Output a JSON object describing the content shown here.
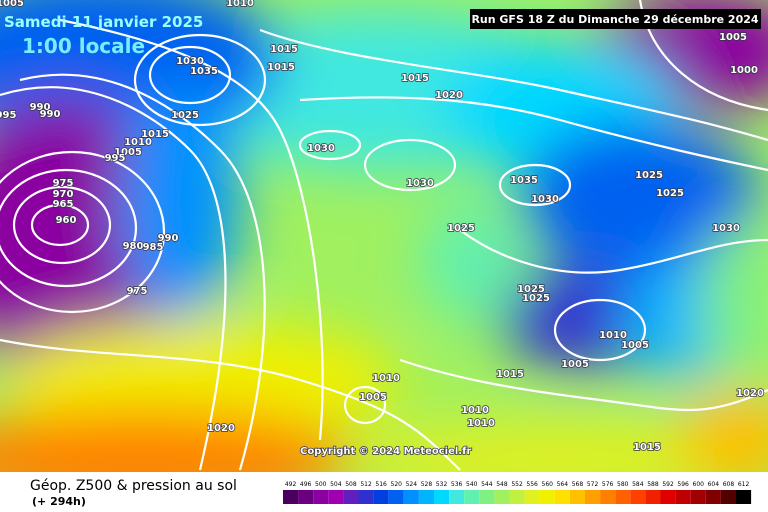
{
  "header": {
    "date": "Samedi 11 janvier 2025",
    "local_time": "1:00 locale",
    "run": "Run GFS 18 Z du Dimanche 29 décembre 2024"
  },
  "copyright": "Copyright © 2024 Meteociel.fr",
  "isobar_labels": [
    "1005",
    "1010",
    "1030",
    "1035",
    "1015",
    "1015",
    "1015",
    "1020",
    "990",
    "995",
    "990",
    "1025",
    "1015",
    "1010",
    "1005",
    "995",
    "1030",
    "1030",
    "1035",
    "1030",
    "1025",
    "1025",
    "975",
    "970",
    "965",
    "960",
    "980",
    "985",
    "990",
    "1025",
    "1030",
    "975",
    "1025",
    "1025",
    "1010",
    "1005",
    "1005",
    "1015",
    "1010",
    "1005",
    "1010",
    "1010",
    "1020",
    "1015",
    "1020",
    "1005",
    "1000"
  ],
  "footer": {
    "title": "Géop. Z500 & pression au sol",
    "lead_time": "(+ 294h)",
    "scale": {
      "values": [
        492,
        496,
        500,
        504,
        508,
        512,
        516,
        520,
        524,
        528,
        532,
        536,
        540,
        544,
        548,
        552,
        556,
        560,
        564,
        568,
        572,
        576,
        580,
        584,
        588,
        592,
        596,
        600,
        604,
        608,
        612
      ],
      "colors": [
        "#4b0060",
        "#6a0080",
        "#8a00a0",
        "#a000b0",
        "#6020c0",
        "#3030d0",
        "#0040e0",
        "#0060f0",
        "#0090ff",
        "#00b4ff",
        "#00d8ff",
        "#40e8e0",
        "#60f0b0",
        "#80f080",
        "#a0f060",
        "#c0f040",
        "#e0f020",
        "#f0f000",
        "#ffe000",
        "#ffc000",
        "#ffa000",
        "#ff8000",
        "#ff6000",
        "#ff4000",
        "#f02000",
        "#e00000",
        "#c00000",
        "#a00000",
        "#800000",
        "#500000",
        "#000000"
      ]
    }
  }
}
